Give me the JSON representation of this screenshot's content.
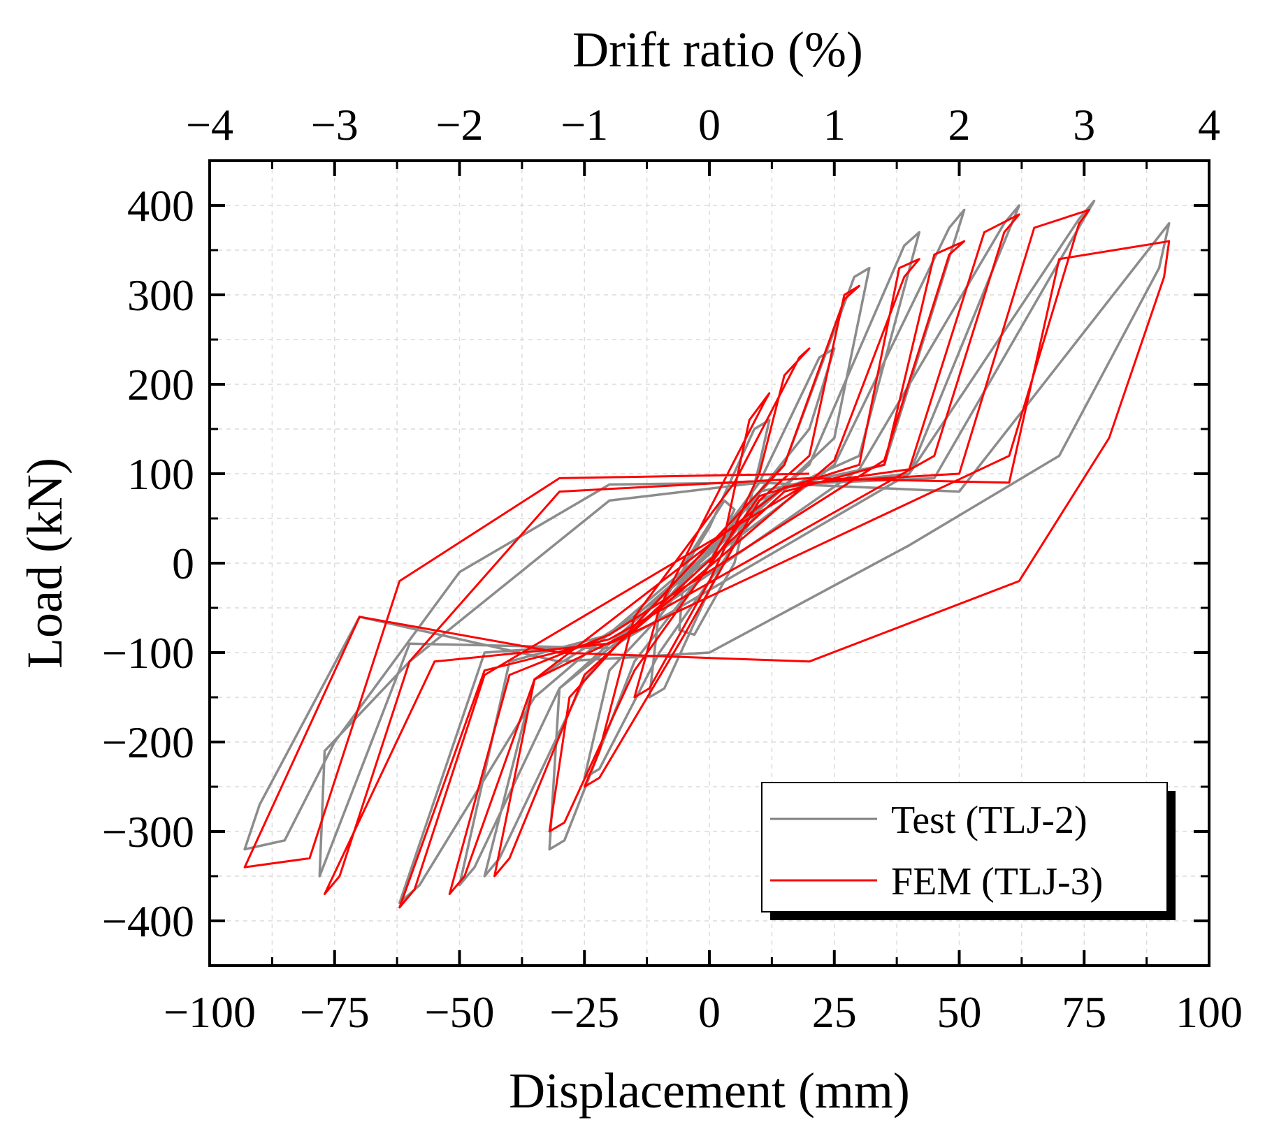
{
  "chart_data": {
    "type": "line",
    "title": "",
    "xlabel": "Displacement (mm)",
    "ylabel": "Load (kN)",
    "x2label": "Drift ratio (%)",
    "xlim": [
      -100,
      100
    ],
    "ylim": [
      -450,
      450
    ],
    "x2lim": [
      -4,
      4
    ],
    "xticks": [
      -100,
      -75,
      -50,
      -25,
      0,
      25,
      50,
      75,
      100
    ],
    "xtick_labels": [
      "−100",
      "−75",
      "−50",
      "−25",
      "0",
      "25",
      "50",
      "75",
      "100"
    ],
    "yticks": [
      -400,
      -300,
      -200,
      -100,
      0,
      100,
      200,
      300,
      400
    ],
    "ytick_labels": [
      "−400",
      "−300",
      "−200",
      "−100",
      "0",
      "100",
      "200",
      "300",
      "400"
    ],
    "x2ticks": [
      -4,
      -3,
      -2,
      -1,
      0,
      1,
      2,
      3,
      4
    ],
    "x2tick_labels": [
      "−4",
      "−3",
      "−2",
      "−1",
      "0",
      "1",
      "2",
      "3",
      "4"
    ],
    "grid": true,
    "legend_position": "bottom-right",
    "series": [
      {
        "name": "Test  (TLJ-2)",
        "color": "#808080",
        "points": [
          [
            0,
            0
          ],
          [
            5,
            60
          ],
          [
            3,
            70
          ],
          [
            -5,
            0
          ],
          [
            -6,
            -75
          ],
          [
            -3,
            -80
          ],
          [
            5,
            0
          ],
          [
            10,
            110
          ],
          [
            12,
            160
          ],
          [
            9,
            150
          ],
          [
            0,
            40
          ],
          [
            -10,
            -50
          ],
          [
            -12,
            -150
          ],
          [
            -9,
            -140
          ],
          [
            0,
            -30
          ],
          [
            10,
            80
          ],
          [
            20,
            150
          ],
          [
            25,
            240
          ],
          [
            22,
            230
          ],
          [
            10,
            90
          ],
          [
            -10,
            -60
          ],
          [
            -20,
            -120
          ],
          [
            -25,
            -240
          ],
          [
            -22,
            -230
          ],
          [
            -10,
            -100
          ],
          [
            10,
            60
          ],
          [
            25,
            140
          ],
          [
            32,
            330
          ],
          [
            29,
            320
          ],
          [
            15,
            110
          ],
          [
            -10,
            -50
          ],
          [
            -30,
            -140
          ],
          [
            -32,
            -320
          ],
          [
            -29,
            -310
          ],
          [
            -15,
            -110
          ],
          [
            10,
            70
          ],
          [
            30,
            120
          ],
          [
            42,
            370
          ],
          [
            39,
            355
          ],
          [
            20,
            110
          ],
          [
            -15,
            -60
          ],
          [
            -35,
            -130
          ],
          [
            -45,
            -350
          ],
          [
            -42,
            -330
          ],
          [
            -25,
            -130
          ],
          [
            10,
            80
          ],
          [
            35,
            110
          ],
          [
            51,
            395
          ],
          [
            48,
            375
          ],
          [
            25,
            110
          ],
          [
            -20,
            -80
          ],
          [
            -40,
            -110
          ],
          [
            -50,
            -360
          ],
          [
            -47,
            -340
          ],
          [
            -30,
            -140
          ],
          [
            15,
            85
          ],
          [
            40,
            100
          ],
          [
            62,
            400
          ],
          [
            59,
            380
          ],
          [
            30,
            105
          ],
          [
            -20,
            -90
          ],
          [
            -45,
            -100
          ],
          [
            -62,
            -380
          ],
          [
            -58,
            -360
          ],
          [
            -35,
            -150
          ],
          [
            15,
            88
          ],
          [
            45,
            95
          ],
          [
            77,
            405
          ],
          [
            74,
            385
          ],
          [
            40,
            100
          ],
          [
            -20,
            -95
          ],
          [
            -60,
            -90
          ],
          [
            -78,
            -350
          ],
          [
            -77,
            -210
          ],
          [
            -60,
            -110
          ],
          [
            -20,
            70
          ],
          [
            10,
            90
          ],
          [
            50,
            80
          ],
          [
            92,
            380
          ],
          [
            90,
            330
          ],
          [
            70,
            120
          ],
          [
            40,
            20
          ],
          [
            0,
            -100
          ],
          [
            -30,
            -110
          ],
          [
            -70,
            -60
          ],
          [
            -90,
            -270
          ],
          [
            -93,
            -320
          ],
          [
            -85,
            -310
          ],
          [
            -75,
            -200
          ],
          [
            -50,
            -10
          ],
          [
            -20,
            88
          ],
          [
            10,
            90
          ]
        ]
      },
      {
        "name": "FEM (TLJ-3)",
        "color": "#ff0000",
        "points": [
          [
            0,
            0
          ],
          [
            3,
            30
          ],
          [
            8,
            160
          ],
          [
            12,
            190
          ],
          [
            11,
            180
          ],
          [
            0,
            60
          ],
          [
            -10,
            -50
          ],
          [
            -15,
            -150
          ],
          [
            -12,
            -140
          ],
          [
            0,
            -20
          ],
          [
            10,
            100
          ],
          [
            15,
            210
          ],
          [
            20,
            240
          ],
          [
            18,
            230
          ],
          [
            5,
            90
          ],
          [
            -15,
            -60
          ],
          [
            -22,
            -210
          ],
          [
            -25,
            -250
          ],
          [
            -22,
            -240
          ],
          [
            -5,
            -80
          ],
          [
            10,
            70
          ],
          [
            20,
            120
          ],
          [
            27,
            300
          ],
          [
            30,
            310
          ],
          [
            27,
            295
          ],
          [
            15,
            110
          ],
          [
            -15,
            -70
          ],
          [
            -28,
            -150
          ],
          [
            -32,
            -300
          ],
          [
            -29,
            -290
          ],
          [
            -15,
            -120
          ],
          [
            10,
            75
          ],
          [
            30,
            110
          ],
          [
            38,
            330
          ],
          [
            42,
            340
          ],
          [
            39,
            320
          ],
          [
            25,
            115
          ],
          [
            -15,
            -75
          ],
          [
            -35,
            -130
          ],
          [
            -43,
            -350
          ],
          [
            -40,
            -330
          ],
          [
            -25,
            -125
          ],
          [
            15,
            80
          ],
          [
            35,
            110
          ],
          [
            45,
            345
          ],
          [
            51,
            360
          ],
          [
            48,
            345
          ],
          [
            35,
            115
          ],
          [
            -20,
            -80
          ],
          [
            -40,
            -125
          ],
          [
            -52,
            -370
          ],
          [
            -49,
            -350
          ],
          [
            -35,
            -130
          ],
          [
            15,
            85
          ],
          [
            40,
            105
          ],
          [
            55,
            370
          ],
          [
            62,
            390
          ],
          [
            59,
            370
          ],
          [
            45,
            120
          ],
          [
            -20,
            -85
          ],
          [
            -45,
            -120
          ],
          [
            -62,
            -385
          ],
          [
            -59,
            -365
          ],
          [
            -45,
            -125
          ],
          [
            20,
            90
          ],
          [
            50,
            100
          ],
          [
            65,
            375
          ],
          [
            76,
            395
          ],
          [
            74,
            380
          ],
          [
            60,
            120
          ],
          [
            -20,
            -90
          ],
          [
            -55,
            -110
          ],
          [
            -77,
            -370
          ],
          [
            -74,
            -350
          ],
          [
            -60,
            -110
          ],
          [
            -30,
            80
          ],
          [
            20,
            95
          ],
          [
            60,
            90
          ],
          [
            70,
            340
          ],
          [
            92,
            360
          ],
          [
            91,
            320
          ],
          [
            80,
            140
          ],
          [
            62,
            -20
          ],
          [
            20,
            -110
          ],
          [
            -30,
            -100
          ],
          [
            -70,
            -60
          ],
          [
            -93,
            -340
          ],
          [
            -80,
            -330
          ],
          [
            -62,
            -20
          ],
          [
            -30,
            95
          ],
          [
            20,
            100
          ]
        ]
      }
    ]
  },
  "legend": {
    "entries": [
      "Test  (TLJ-2)",
      "FEM (TLJ-3)"
    ]
  }
}
